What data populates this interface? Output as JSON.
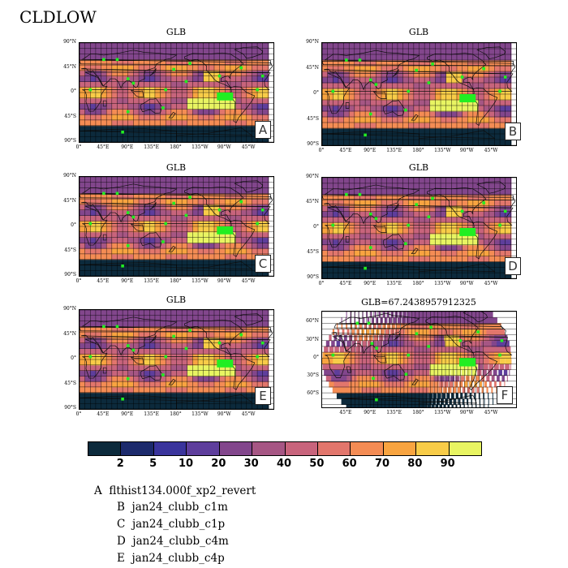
{
  "main_title": "CLDLOW",
  "colors": {
    "palette": [
      "#0c2a3c",
      "#1c2a6c",
      "#3a349c",
      "#5e3e9c",
      "#82468c",
      "#a65684",
      "#c8647c",
      "#e2766c",
      "#f48c54",
      "#f8a440",
      "#f8cc48",
      "#e8f462"
    ],
    "marker": "#22ee22",
    "land_outline": "#101010"
  },
  "colorbar": {
    "labels": [
      "2",
      "5",
      "10",
      "20",
      "30",
      "40",
      "50",
      "60",
      "70",
      "80",
      "90"
    ]
  },
  "panels": [
    {
      "title": "GLB",
      "letter": "A",
      "projection": "cylindrical",
      "ylabels": [
        "90°N",
        "45°N",
        "0°",
        "45°S",
        "90°S"
      ],
      "xlabels": [
        "0°",
        "45°E",
        "90°E",
        "135°E",
        "180°",
        "135°W",
        "90°W",
        "45°W"
      ]
    },
    {
      "title": "GLB",
      "letter": "B",
      "projection": "cylindrical",
      "ylabels": [
        "90°N",
        "45°N",
        "0°",
        "45°S",
        "90°S"
      ],
      "xlabels": [
        "0°",
        "45°E",
        "90°E",
        "135°E",
        "180°",
        "135°W",
        "90°W",
        "45°W"
      ]
    },
    {
      "title": "GLB",
      "letter": "C",
      "projection": "cylindrical",
      "ylabels": [
        "90°N",
        "45°N",
        "0°",
        "45°S",
        "90°S"
      ],
      "xlabels": [
        "0°",
        "45°E",
        "90°E",
        "135°E",
        "180°",
        "135°W",
        "90°W",
        "45°W"
      ]
    },
    {
      "title": "GLB",
      "letter": "D",
      "projection": "cylindrical",
      "ylabels": [
        "90°N",
        "45°N",
        "0°",
        "45°S",
        "90°S"
      ],
      "xlabels": [
        "0°",
        "45°E",
        "90°E",
        "135°E",
        "180°",
        "135°W",
        "90°W",
        "45°W"
      ]
    },
    {
      "title": "GLB",
      "letter": "E",
      "projection": "cylindrical",
      "ylabels": [
        "90°N",
        "45°N",
        "0°",
        "45°S",
        "90°S"
      ],
      "xlabels": [
        "0°",
        "45°E",
        "90°E",
        "135°E",
        "180°",
        "135°W",
        "90°W",
        "45°W"
      ]
    },
    {
      "title": "GLB=67.2438957912325",
      "letter": "F",
      "projection": "robinson",
      "ylabels": [
        "60°N",
        "30°N",
        "0°",
        "30°S",
        "60°S"
      ],
      "xlabels": [
        "45°E",
        "90°E",
        "135°E",
        "180°",
        "135°W",
        "90°W",
        "45°W"
      ]
    }
  ],
  "legend": [
    {
      "letter": "A",
      "name": "flthist134.000f_xp2_revert"
    },
    {
      "letter": "B",
      "name": "jan24_clubb_c1m"
    },
    {
      "letter": "C",
      "name": "jan24_clubb_c1p"
    },
    {
      "letter": "D",
      "name": "jan24_clubb_c4m"
    },
    {
      "letter": "E",
      "name": "jan24_clubb_c4p"
    }
  ]
}
